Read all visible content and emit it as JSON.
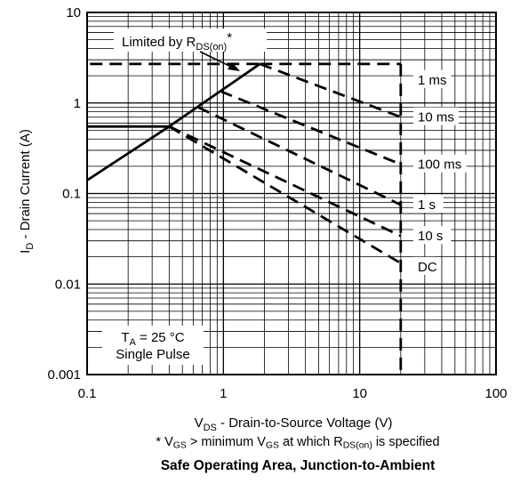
{
  "chart_data": {
    "type": "line",
    "x_scale": "log",
    "y_scale": "log",
    "xlim": [
      0.1,
      100
    ],
    "ylim": [
      0.001,
      10
    ],
    "x_ticks": [
      "0.1",
      "1",
      "10",
      "100"
    ],
    "y_ticks": [
      "0.001",
      "0.01",
      "0.1",
      "1",
      "10"
    ],
    "grid": true,
    "xlabel": {
      "main": "V",
      "sub": "DS",
      "rest": " - Drain-to-Source Voltage (V)"
    },
    "ylabel": {
      "main": "I",
      "sub": "D",
      "rest": " - Drain Current (A)"
    },
    "rds_limit": {
      "label_pre": "Limited by R",
      "label_sub": "DS(on)",
      "label_post": "*",
      "points": [
        [
          0.1,
          0.14
        ],
        [
          0.4,
          0.55
        ],
        [
          1.85,
          2.7
        ]
      ]
    },
    "series": [
      {
        "name": "1 ms",
        "points": [
          [
            1.85,
            2.7
          ],
          [
            5.0,
            2.7
          ],
          [
            20,
            2.7
          ]
        ]
      },
      {
        "name": "10 ms",
        "points": [
          [
            1.85,
            2.7
          ],
          [
            20,
            0.7
          ]
        ]
      },
      {
        "name": "100 ms",
        "points": [
          [
            0.95,
            1.35
          ],
          [
            20,
            0.21
          ]
        ]
      },
      {
        "name": "1 s",
        "points": [
          [
            0.65,
            0.9
          ],
          [
            20,
            0.075
          ]
        ]
      },
      {
        "name": "10 s",
        "points": [
          [
            0.4,
            0.55
          ],
          [
            20,
            0.034
          ]
        ]
      },
      {
        "name": "DC",
        "points": [
          [
            0.1,
            0.55
          ],
          [
            0.4,
            0.55
          ],
          [
            20,
            0.017
          ]
        ]
      }
    ],
    "annotation": {
      "ta_pre": "T",
      "ta_sub": "A",
      "ta_post": " = 25 °C",
      "pulse": "Single Pulse"
    }
  },
  "footnote": {
    "p1": "* V",
    "s1": "GS",
    "p2": " >  minimum V",
    "s2": "GS",
    "p3": " at which R",
    "s3": "DS(on)",
    "p4": " is specified"
  },
  "caption": "Safe Operating Area, Junction-to-Ambient"
}
